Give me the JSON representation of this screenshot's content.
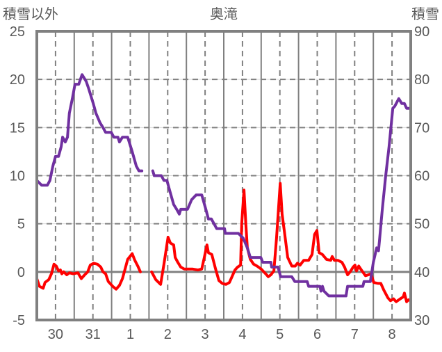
{
  "chart_data": {
    "type": "line",
    "title": "奥滝",
    "ylabel_left": "積雪以外",
    "ylabel_right": "積雪",
    "x_unit": "days since 30th 00:00",
    "xlim": [
      0,
      10
    ],
    "ylim_left": [
      -5,
      25
    ],
    "ylim_right": [
      30,
      90
    ],
    "yticks_left": [
      "-5",
      "0",
      "5",
      "10",
      "15",
      "20",
      "25"
    ],
    "yticks_right": [
      "30",
      "40",
      "50",
      "60",
      "70",
      "80",
      "90"
    ],
    "xtick_labels": [
      "30",
      "31",
      "1",
      "2",
      "3",
      "4",
      "5",
      "6",
      "7",
      "8"
    ],
    "xtick_positions": [
      0.5,
      1.5,
      2.5,
      3.5,
      4.5,
      5.5,
      6.5,
      7.5,
      8.5,
      9.5
    ],
    "grid": true,
    "series": [
      {
        "name": "積雪以外",
        "axis": "left",
        "color": "#ff0000",
        "x": [
          0,
          0.07,
          0.17,
          0.22,
          0.32,
          0.39,
          0.46,
          0.52,
          0.58,
          0.63,
          0.67,
          0.72,
          0.8,
          0.87,
          0.97,
          1.1,
          1.19,
          1.28,
          1.36,
          1.43,
          1.52,
          1.62,
          1.71,
          1.77,
          1.84,
          1.91,
          2.03,
          2.12,
          2.21,
          2.29,
          2.36,
          2.43,
          2.49,
          2.55,
          2.62,
          2.7,
          2.77,
          null,
          3.07,
          3.18,
          3.31,
          3.4,
          3.51,
          3.57,
          3.66,
          3.7,
          3.77,
          3.85,
          3.94,
          4.16,
          4.31,
          4.41,
          4.48,
          4.55,
          4.59,
          4.68,
          4.78,
          4.87,
          4.96,
          5.06,
          5.15,
          5.22,
          5.3,
          5.37,
          5.45,
          5.48,
          5.54,
          5.59,
          5.63,
          5.71,
          5.8,
          5.89,
          6.0,
          6.12,
          6.19,
          6.26,
          6.34,
          6.41,
          6.51,
          6.56,
          6.62,
          6.71,
          6.82,
          6.91,
          6.97,
          7.04,
          7.14,
          7.27,
          7.36,
          7.43,
          7.49,
          7.55,
          7.64,
          7.75,
          7.86,
          7.9,
          7.96,
          8.05,
          8.16,
          8.23,
          8.31,
          8.38,
          8.46,
          8.51,
          8.55,
          8.61,
          8.68,
          8.79,
          8.87,
          8.94,
          9.01,
          9.13,
          9.2,
          9.28,
          9.39,
          9.46,
          9.54,
          9.61,
          9.72,
          9.8,
          9.83,
          9.89,
          9.94,
          10.0
        ],
        "y": [
          -0.7,
          -1.5,
          -1.7,
          -1.1,
          -0.8,
          -0.2,
          0.8,
          0.6,
          0.1,
          0.2,
          -0.2,
          0,
          -0.3,
          -0.1,
          -0.2,
          -0.1,
          -0.7,
          -0.3,
          0,
          0.7,
          0.9,
          0.8,
          0.5,
          0,
          -0.2,
          -1,
          -1.5,
          -1.8,
          -1.4,
          -0.7,
          0.3,
          1.3,
          1.6,
          1.9,
          1.2,
          0.6,
          0,
          null,
          0,
          -0.8,
          -1.3,
          0.8,
          3.6,
          3,
          2.8,
          1.5,
          1.0,
          0.5,
          0.3,
          0.3,
          0.2,
          0.3,
          1.5,
          2.8,
          2,
          1.8,
          0.3,
          -0.9,
          -1.2,
          -1.3,
          -1.1,
          -0.5,
          0.2,
          0.5,
          0.7,
          5,
          8.5,
          5,
          2.5,
          1.3,
          0.8,
          0.6,
          0.3,
          -0.2,
          -0.5,
          -0.3,
          0.1,
          3.5,
          9.2,
          6,
          4.2,
          1.5,
          0.6,
          0.6,
          0.9,
          0.7,
          1.2,
          1.2,
          1.8,
          3.9,
          4.3,
          2,
          1.8,
          1.3,
          1.2,
          1.6,
          1.2,
          1.2,
          1.0,
          0.5,
          -0.3,
          0,
          0.5,
          0.7,
          0.1,
          0.6,
          0.2,
          -0.4,
          -0.3,
          -0.2,
          -1.1,
          -1.2,
          -1.2,
          -1.9,
          -2.7,
          -3.0,
          -2.8,
          -3.1,
          -2.8,
          -2.6,
          -2.2,
          -3.1,
          -2.9,
          -3.0
        ]
      },
      {
        "name": "積雪",
        "axis": "right",
        "color": "#7030a0",
        "x": [
          0,
          0.13,
          0.28,
          0.35,
          0.43,
          0.5,
          0.58,
          0.65,
          0.69,
          0.76,
          0.82,
          0.87,
          0.95,
          1.02,
          1.12,
          1.21,
          1.32,
          1.39,
          1.51,
          1.58,
          1.69,
          1.77,
          1.84,
          1.99,
          2.06,
          2.17,
          2.21,
          2.29,
          2.43,
          2.55,
          2.66,
          2.73,
          2.81,
          null,
          3.1,
          3.14,
          3.33,
          3.4,
          3.48,
          3.55,
          3.66,
          3.74,
          3.81,
          3.85,
          4.03,
          4.14,
          4.26,
          4.41,
          4.52,
          4.59,
          4.67,
          4.74,
          4.81,
          5.02,
          5.04,
          5.39,
          5.52,
          5.63,
          5.71,
          5.99,
          6.04,
          6.26,
          6.28,
          6.45,
          6.52,
          6.82,
          6.9,
          7.23,
          7.27,
          7.57,
          7.6,
          7.64,
          7.68,
          7.81,
          8.27,
          8.31,
          8.72,
          8.75,
          8.92,
          9.0,
          9.09,
          9.14,
          9.24,
          9.33,
          9.42,
          9.52,
          9.57,
          9.68,
          9.76,
          9.83,
          9.89,
          10.0
        ],
        "y": [
          59,
          58,
          58,
          59,
          62,
          64,
          64,
          66,
          68,
          67,
          68,
          73,
          76,
          79,
          79,
          81,
          79.6,
          78,
          75,
          73,
          71,
          70,
          69,
          69,
          68,
          68,
          67,
          68,
          68,
          65,
          62,
          61,
          61,
          null,
          61,
          60,
          60,
          59,
          59,
          57,
          54,
          53,
          52,
          53,
          53,
          55,
          56,
          56,
          53,
          51,
          51,
          50,
          49,
          49,
          48,
          48,
          47,
          45,
          43,
          43,
          42,
          42,
          41,
          41,
          39,
          39,
          38,
          38,
          37,
          37,
          36,
          37,
          36,
          35,
          35,
          37,
          37,
          38,
          38,
          42,
          45,
          44.4,
          53,
          60,
          66,
          74,
          74.4,
          76,
          75,
          75,
          74,
          74
        ]
      }
    ]
  }
}
